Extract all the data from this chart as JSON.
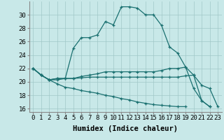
{
  "xlabel": "Humidex (Indice chaleur)",
  "background_color": "#c8e8e8",
  "grid_color": "#a0c8c8",
  "line_color": "#1a7070",
  "x_values": [
    0,
    1,
    2,
    3,
    4,
    5,
    6,
    7,
    8,
    9,
    10,
    11,
    12,
    13,
    14,
    15,
    16,
    17,
    18,
    19,
    20,
    21,
    22,
    23
  ],
  "line1": [
    22,
    21,
    20.3,
    20.3,
    20.5,
    25,
    26.6,
    26.6,
    27,
    29,
    28.5,
    31.2,
    31.2,
    31,
    30,
    30,
    28.4,
    25.2,
    24.3,
    22.2,
    19,
    17.2,
    16.3,
    null
  ],
  "line2": [
    22,
    21,
    20.3,
    20.5,
    20.5,
    20.5,
    20.8,
    21,
    21.2,
    21.5,
    21.5,
    21.5,
    21.5,
    21.5,
    21.5,
    21.5,
    21.7,
    22,
    22,
    22.2,
    21,
    17.2,
    16.3,
    null
  ],
  "line3": [
    22,
    21,
    20.3,
    20.5,
    20.5,
    20.5,
    20.6,
    20.7,
    20.7,
    20.7,
    20.7,
    20.7,
    20.7,
    20.7,
    20.7,
    20.7,
    20.7,
    20.7,
    20.7,
    20.9,
    21,
    19.5,
    19.0,
    16.3
  ],
  "line4": [
    22,
    21,
    20.3,
    19.7,
    19.2,
    19.0,
    18.7,
    18.5,
    18.3,
    18.0,
    17.8,
    17.5,
    17.3,
    17.0,
    16.8,
    16.6,
    16.5,
    16.4,
    16.3,
    16.3,
    null,
    null,
    null,
    null
  ],
  "xlim": [
    -0.5,
    23.5
  ],
  "ylim": [
    15.5,
    32
  ],
  "yticks": [
    16,
    18,
    20,
    22,
    24,
    26,
    28,
    30
  ],
  "tick_fontsize": 6.5,
  "label_fontsize": 7.5
}
